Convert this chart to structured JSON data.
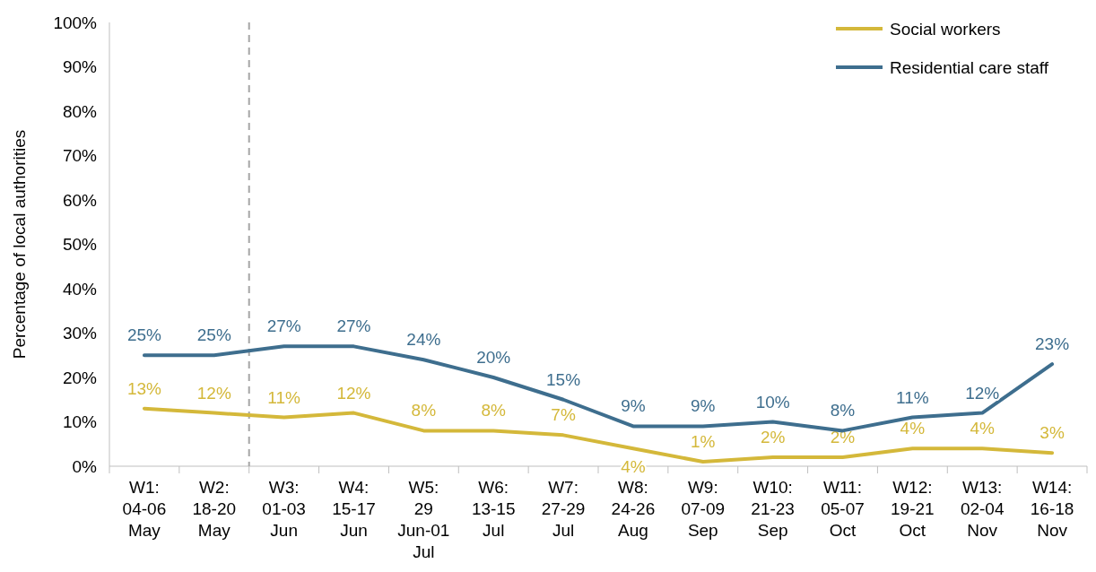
{
  "chart_data": {
    "type": "line",
    "ylabel": "Percentage of local authorities",
    "categories": [
      "W1:\n04-06\nMay",
      "W2:\n18-20\nMay",
      "W3:\n01-03\nJun",
      "W4:\n15-17\nJun",
      "W5:\n29\nJun-01\nJul",
      "W6:\n13-15\nJul",
      "W7:\n27-29\nJul",
      "W8:\n24-26\nAug",
      "W9:\n07-09\nSep",
      "W10:\n21-23\nSep",
      "W11:\n05-07\nOct",
      "W12:\n19-21\nOct",
      "W13:\n02-04\nNov",
      "W14:\n16-18\nNov"
    ],
    "series": [
      {
        "name": "Social workers",
        "color": "#d4b83a",
        "values": [
          13,
          12,
          11,
          12,
          8,
          8,
          7,
          4,
          1,
          2,
          2,
          4,
          4,
          3
        ],
        "value_labels": [
          "13%",
          "12%",
          "11%",
          "12%",
          "8%",
          "8%",
          "7%",
          "4%",
          "1%",
          "2%",
          "2%",
          "4%",
          "4%",
          "3%"
        ]
      },
      {
        "name": "Residential care staff",
        "color": "#3e6e8e",
        "values": [
          25,
          25,
          27,
          27,
          24,
          20,
          15,
          9,
          9,
          10,
          8,
          11,
          12,
          23
        ],
        "value_labels": [
          "25%",
          "25%",
          "27%",
          "27%",
          "24%",
          "20%",
          "15%",
          "9%",
          "9%",
          "10%",
          "8%",
          "11%",
          "12%",
          "23%"
        ]
      }
    ],
    "ylim": [
      0,
      100
    ],
    "yticks": [
      {
        "value": 0,
        "label": "0%"
      },
      {
        "value": 10,
        "label": "10%"
      },
      {
        "value": 20,
        "label": "20%"
      },
      {
        "value": 30,
        "label": "30%"
      },
      {
        "value": 40,
        "label": "40%"
      },
      {
        "value": 50,
        "label": "50%"
      },
      {
        "value": 60,
        "label": "60%"
      },
      {
        "value": 70,
        "label": "70%"
      },
      {
        "value": 80,
        "label": "80%"
      },
      {
        "value": 90,
        "label": "90%"
      },
      {
        "value": 100,
        "label": "100%"
      }
    ],
    "grid": false,
    "legend": "top right",
    "marker": "none",
    "line_style": "solid"
  }
}
